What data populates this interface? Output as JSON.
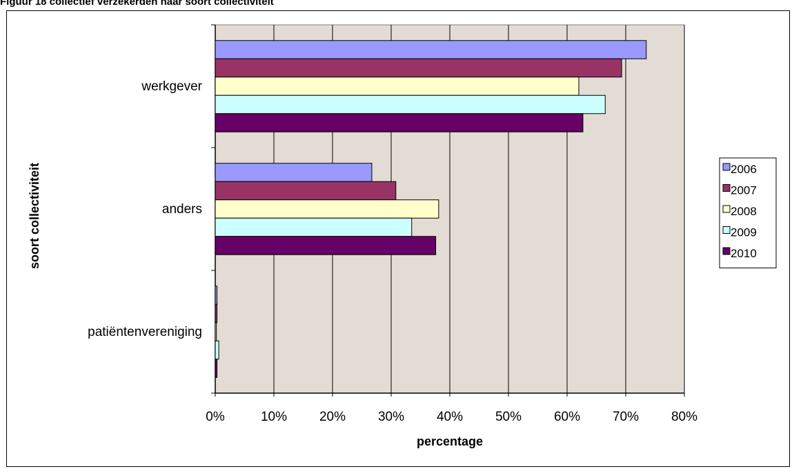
{
  "page": {
    "title": "Figuur 18 collectief verzekerden naar soort collectiviteit"
  },
  "chart_data": {
    "type": "bar",
    "orientation": "horizontal",
    "title": "",
    "xlabel": "percentage",
    "ylabel": "soort collectiviteit",
    "xlim": [
      0,
      0.8
    ],
    "x_ticks": [
      "0%",
      "10%",
      "20%",
      "30%",
      "40%",
      "50%",
      "60%",
      "70%",
      "80%"
    ],
    "grid": true,
    "legend_position": "right",
    "plot_background": "#e2dcd4",
    "categories": [
      "werkgever",
      "anders",
      "patiëntenvereniging"
    ],
    "series": [
      {
        "name": "2006",
        "color": "#9999ff",
        "values": [
          0.735,
          0.267,
          0.003
        ]
      },
      {
        "name": "2007",
        "color": "#993366",
        "values": [
          0.693,
          0.308,
          0.003
        ]
      },
      {
        "name": "2008",
        "color": "#ffffcc",
        "values": [
          0.62,
          0.381,
          0.002
        ]
      },
      {
        "name": "2009",
        "color": "#ccffff",
        "values": [
          0.665,
          0.335,
          0.006
        ]
      },
      {
        "name": "2010",
        "color": "#660066",
        "values": [
          0.627,
          0.376,
          0.003
        ]
      }
    ]
  }
}
